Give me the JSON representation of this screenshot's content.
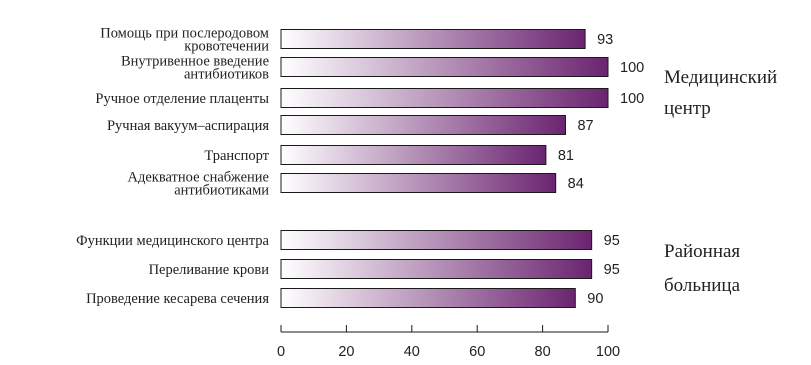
{
  "chart_data": {
    "type": "bar",
    "orientation": "horizontal",
    "xlim": [
      0,
      100
    ],
    "ticks": [
      "0",
      "20",
      "40",
      "60",
      "80",
      "100"
    ],
    "grid": false,
    "groups": [
      {
        "name": [
          "Медицинский",
          "центр"
        ],
        "bars": [
          {
            "label": [
              "Помощь при послеродовом",
              "кровотечении"
            ],
            "value": 93
          },
          {
            "label": [
              "Внутривенное введение",
              "антибиотиков"
            ],
            "value": 100
          },
          {
            "label": [
              "Ручное отделение плаценты"
            ],
            "value": 100
          },
          {
            "label": [
              "Ручная вакуум–аспирация"
            ],
            "value": 87
          },
          {
            "label": [
              "Транспорт"
            ],
            "value": 81
          },
          {
            "label": [
              "Адекватное снабжение",
              "антибиотиками"
            ],
            "value": 84
          }
        ]
      },
      {
        "name": [
          "Районная",
          "больница"
        ],
        "bars": [
          {
            "label": [
              "Функции медицинского центра"
            ],
            "value": 95
          },
          {
            "label": [
              "Переливание крови"
            ],
            "value": 95
          },
          {
            "label": [
              "Проведение кесарева сечения"
            ],
            "value": 90
          }
        ]
      }
    ],
    "colors": {
      "bar_start": "#ffffff",
      "bar_end": "#6b2470",
      "outline": "#1a1a1a"
    }
  }
}
